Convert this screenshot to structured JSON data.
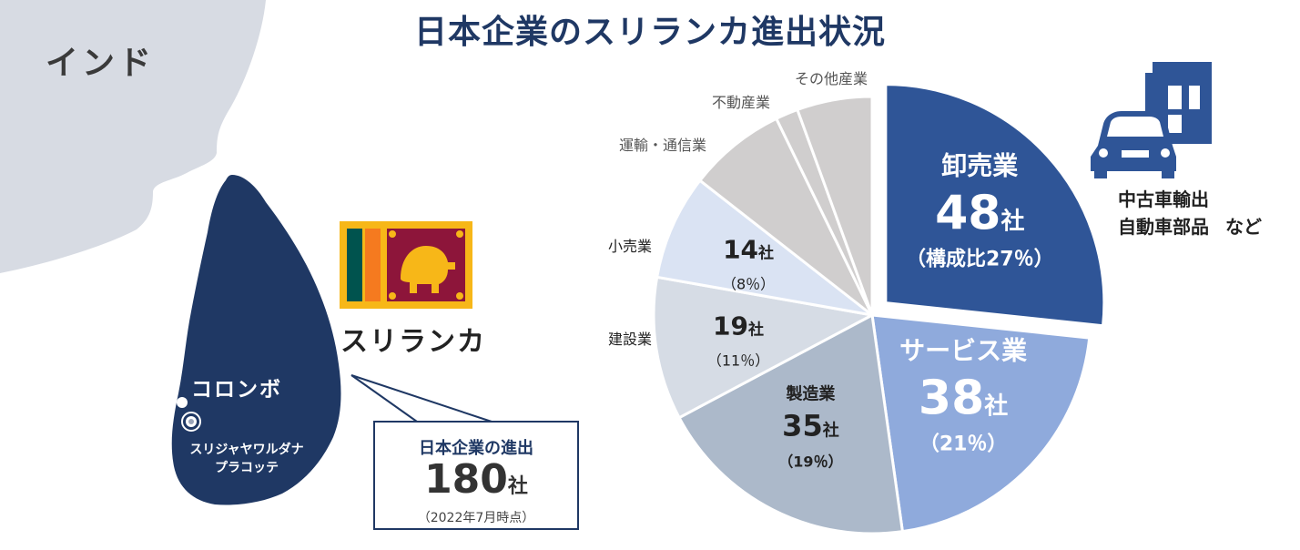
{
  "title": "日本企業のスリランカ進出状況",
  "map": {
    "country_label": "インド",
    "sri_lanka_label": "スリランカ",
    "colombo_label": "コロンボ",
    "capital_label_line1": "スリジャヤワルダナ",
    "capital_label_line2": "プラコッテ",
    "land_color": "#d7dbe3",
    "island_color": "#1f3864"
  },
  "callout": {
    "label": "日本企業の進出",
    "count": "180",
    "unit": "社",
    "as_of": "（2022年7月時点）"
  },
  "note": {
    "line1": "中古車輸出",
    "line2": "自動車部品",
    "suffix": "など"
  },
  "icons": [
    "sri-lanka-flag-icon",
    "car-icon",
    "building-icon"
  ],
  "chart_data": {
    "type": "pie",
    "title": "",
    "start_angle_deg": 0,
    "direction": "clockwise",
    "slices": [
      {
        "name": "卸売業",
        "value": 48,
        "count_label": "48",
        "unit": "社",
        "pct_label": "（構成比27％）",
        "color": "#2f5597",
        "text_color": "#ffffff",
        "exploded": true
      },
      {
        "name": "サービス業",
        "value": 38,
        "count_label": "38",
        "unit": "社",
        "pct_label": "（21％）",
        "color": "#8faadc",
        "text_color": "#ffffff",
        "exploded": false
      },
      {
        "name": "製造業",
        "value": 35,
        "count_label": "35",
        "unit": "社",
        "pct_label": "（19％）",
        "color": "#acb9ca",
        "text_color": "#222222",
        "exploded": false
      },
      {
        "name": "建設業",
        "value": 19,
        "count_label": "19",
        "unit": "社",
        "pct_label": "（11％）",
        "color": "#d6dce5",
        "text_color": "#222222",
        "exploded": false
      },
      {
        "name": "小売業",
        "value": 14,
        "count_label": "14",
        "unit": "社",
        "pct_label": "（8％）",
        "color": "#dae3f3",
        "text_color": "#222222",
        "exploded": false
      },
      {
        "name": "運輸・通信業",
        "value": 13,
        "count_label": "",
        "unit": "",
        "pct_label": "",
        "color": "#d0cece",
        "text_color": "#555555",
        "exploded": false
      },
      {
        "name": "不動産業",
        "value": 3,
        "count_label": "",
        "unit": "",
        "pct_label": "",
        "color": "#d0cece",
        "text_color": "#555555",
        "exploded": false
      },
      {
        "name": "その他産業",
        "value": 10,
        "count_label": "",
        "unit": "",
        "pct_label": "",
        "color": "#d0cece",
        "text_color": "#555555",
        "exploded": false
      }
    ]
  }
}
